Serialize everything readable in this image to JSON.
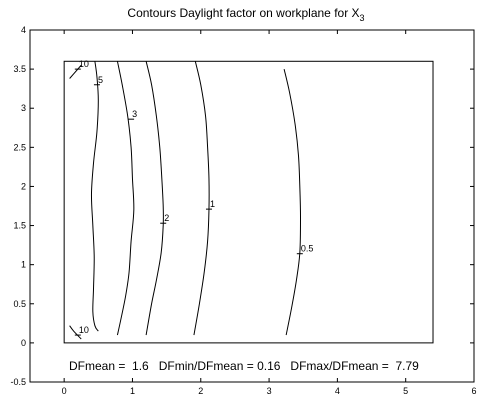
{
  "chart_data": {
    "type": "contour",
    "title": "Contours Daylight factor on workplane  for X",
    "title_subscript": "3",
    "xlim": [
      -0.5,
      6
    ],
    "ylim": [
      -0.5,
      4
    ],
    "x_ticks": [
      0,
      1,
      2,
      3,
      4,
      5,
      6
    ],
    "y_ticks": [
      -0.5,
      0,
      0.5,
      1,
      1.5,
      2,
      2.5,
      3,
      3.5,
      4
    ],
    "room": {
      "x": [
        0,
        5.4
      ],
      "y": [
        0,
        3.6
      ]
    },
    "contours": [
      {
        "level": "10",
        "points": [
          [
            0.08,
            3.38
          ],
          [
            0.2,
            3.5
          ],
          [
            0.25,
            3.55
          ]
        ],
        "label": "10",
        "label_at": [
          0.2,
          3.5
        ]
      },
      {
        "level": "5",
        "points": [
          [
            0.45,
            3.6
          ],
          [
            0.48,
            3.4
          ],
          [
            0.5,
            3.1
          ],
          [
            0.48,
            2.7
          ],
          [
            0.43,
            2.3
          ],
          [
            0.4,
            1.9
          ],
          [
            0.42,
            1.5
          ],
          [
            0.44,
            1.1
          ],
          [
            0.43,
            0.7
          ],
          [
            0.42,
            0.4
          ],
          [
            0.45,
            0.22
          ],
          [
            0.5,
            0.15
          ]
        ],
        "label": "5",
        "label_at": [
          0.48,
          3.3
        ]
      },
      {
        "level": "3",
        "points": [
          [
            0.78,
            3.6
          ],
          [
            0.85,
            3.3
          ],
          [
            0.93,
            2.9
          ],
          [
            0.98,
            2.5
          ],
          [
            1.0,
            2.1
          ],
          [
            1.02,
            1.7
          ],
          [
            0.98,
            1.3
          ],
          [
            0.95,
            0.9
          ],
          [
            0.9,
            0.6
          ],
          [
            0.83,
            0.3
          ],
          [
            0.78,
            0.1
          ]
        ],
        "label": "3",
        "label_at": [
          0.98,
          2.86
        ]
      },
      {
        "level": "2",
        "points": [
          [
            1.2,
            3.6
          ],
          [
            1.28,
            3.3
          ],
          [
            1.35,
            2.9
          ],
          [
            1.4,
            2.5
          ],
          [
            1.43,
            2.1
          ],
          [
            1.45,
            1.75
          ],
          [
            1.45,
            1.5
          ],
          [
            1.42,
            1.15
          ],
          [
            1.35,
            0.8
          ],
          [
            1.28,
            0.5
          ],
          [
            1.2,
            0.1
          ]
        ],
        "label": "2",
        "label_at": [
          1.45,
          1.53
        ]
      },
      {
        "level": "1",
        "points": [
          [
            1.92,
            3.6
          ],
          [
            2.0,
            3.3
          ],
          [
            2.07,
            2.9
          ],
          [
            2.1,
            2.5
          ],
          [
            2.12,
            2.1
          ],
          [
            2.12,
            1.7
          ],
          [
            2.1,
            1.3
          ],
          [
            2.05,
            0.9
          ],
          [
            1.98,
            0.5
          ],
          [
            1.9,
            0.1
          ]
        ],
        "label": "1",
        "label_at": [
          2.12,
          1.71
        ]
      },
      {
        "level": "0.5",
        "points": [
          [
            3.22,
            3.5
          ],
          [
            3.3,
            3.2
          ],
          [
            3.38,
            2.8
          ],
          [
            3.43,
            2.4
          ],
          [
            3.45,
            2.0
          ],
          [
            3.46,
            1.6
          ],
          [
            3.45,
            1.15
          ],
          [
            3.4,
            0.8
          ],
          [
            3.33,
            0.45
          ],
          [
            3.25,
            0.1
          ]
        ],
        "label": "0.5",
        "label_at": [
          3.45,
          1.14
        ]
      },
      {
        "level": "10",
        "points": [
          [
            0.08,
            0.22
          ],
          [
            0.14,
            0.15
          ],
          [
            0.25,
            0.05
          ]
        ],
        "label": "10",
        "label_at": [
          0.2,
          0.1
        ]
      }
    ],
    "annotation": "DFmean =  1.6   DFmin/DFmean = 0.16   DFmax/DFmean =  7.79"
  }
}
